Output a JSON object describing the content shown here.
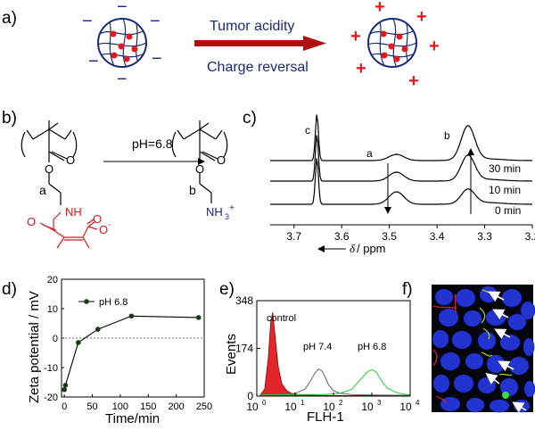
{
  "colors": {
    "navy": "#1a2a7a",
    "red": "#e0191c",
    "dark_red": "#b01010",
    "green": "#22cc33",
    "gray": "#666666",
    "black": "#000000"
  },
  "panels": {
    "a": {
      "label": "a)",
      "arrow_top": "Tumor acidity",
      "arrow_bottom": "Charge reversal",
      "left_charge": "−",
      "right_charge": "+"
    },
    "b": {
      "label": "b)",
      "condition": "pH=6.8",
      "left_sub": "a",
      "right_sub": "b",
      "nh": "NH",
      "o_minus": "O",
      "o_charge": "-",
      "o": "O",
      "nh3": "NH",
      "nh3_sub": "3",
      "nh3_charge": "+"
    },
    "c": {
      "label": "c)",
      "peak_labels": [
        "c",
        "a",
        "b"
      ],
      "time_labels": [
        "30 min",
        "10 min",
        "0 min"
      ],
      "xticks": [
        "3.7",
        "3.6",
        "3.5",
        "3.4",
        "3.3",
        "3.2"
      ],
      "xlabel_delta": "δ",
      "xlabel_unit": "/ ppm"
    },
    "d": {
      "label": "d)"
    },
    "e": {
      "label": "e)"
    },
    "f": {
      "label": "f)",
      "arrow_count": 6
    }
  },
  "chart_data": [
    {
      "type": "line",
      "panel": "d",
      "title": "",
      "xlabel": "Time/min",
      "ylabel": "Zeta potential / mV",
      "series": [
        {
          "name": "pH 6.8",
          "x": [
            0,
            2,
            25,
            60,
            120,
            240
          ],
          "y": [
            -17.5,
            -16,
            -1.5,
            3,
            7.5,
            7
          ]
        }
      ],
      "xlim": [
        -5,
        250
      ],
      "ylim": [
        -20,
        20
      ],
      "xticks": [
        "0",
        "50",
        "100",
        "150",
        "200",
        "250"
      ],
      "yticks": [
        "-20",
        "-10",
        "0",
        "10",
        "20"
      ],
      "reference_line_y": 0,
      "legend": "top-left"
    },
    {
      "type": "area",
      "panel": "e",
      "title": "",
      "xlabel": "FLH-1",
      "ylabel": "Events",
      "xscale": "log",
      "xlim": [
        1,
        10000
      ],
      "ylim": [
        0,
        348
      ],
      "yticks": [
        "0",
        "174",
        "348"
      ],
      "xtick_bases": [
        "10",
        "10",
        "10",
        "10",
        "10"
      ],
      "xtick_exponents": [
        "0",
        "1",
        "2",
        "3",
        "4"
      ],
      "series": [
        {
          "name": "control",
          "color": "#e0191c",
          "x": [
            1.2,
            1.6,
            2.0,
            2.3,
            2.6,
            3.0,
            3.6,
            4.5,
            6,
            8,
            12,
            20,
            40,
            100,
            1000,
            10000
          ],
          "y": [
            2,
            25,
            140,
            270,
            305,
            220,
            110,
            45,
            20,
            10,
            6,
            4,
            3,
            2,
            2,
            1
          ]
        },
        {
          "name": "pH 7.4",
          "color": "#666666",
          "x": [
            1.2,
            3,
            10,
            18,
            25,
            33,
            40,
            50,
            60,
            75,
            100,
            150,
            300,
            1000,
            10000
          ],
          "y": [
            3,
            6,
            10,
            25,
            55,
            85,
            98,
            92,
            70,
            40,
            20,
            10,
            6,
            4,
            3
          ]
        },
        {
          "name": "pH 6.8",
          "color": "#22cc33",
          "x": [
            1.2,
            10,
            60,
            150,
            300,
            500,
            800,
            1000,
            1300,
            1800,
            2500,
            4000,
            6500,
            10000
          ],
          "y": [
            4,
            6,
            6,
            10,
            25,
            60,
            90,
            96,
            88,
            55,
            30,
            15,
            7,
            4
          ]
        }
      ]
    }
  ]
}
